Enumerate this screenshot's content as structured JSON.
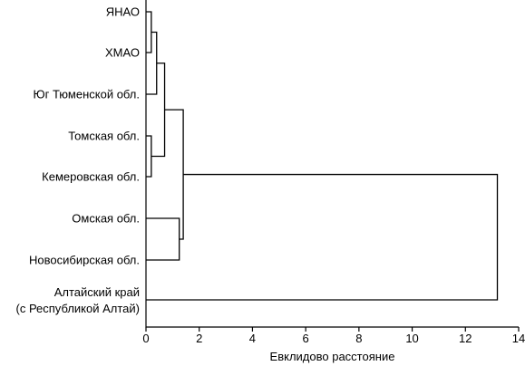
{
  "chart_data": {
    "type": "dendrogram",
    "orientation": "horizontal",
    "xlabel": "Евклидово расстояние",
    "xlim": [
      0,
      14
    ],
    "xticks": [
      0,
      2,
      4,
      6,
      8,
      10,
      12,
      14
    ],
    "leaves": [
      [
        "ЯНАО"
      ],
      [
        "ХМАО"
      ],
      [
        "Юг Тюменской обл."
      ],
      [
        "Томская обл."
      ],
      [
        "Кемеровская обл."
      ],
      [
        "Омская обл."
      ],
      [
        "Новосибирская обл."
      ],
      [
        "Алтайский край",
        "(с Республикой Алтай)"
      ]
    ],
    "merges": [
      {
        "a": "L0",
        "b": "L1",
        "height": 0.2
      },
      {
        "a": "N0",
        "b": "L2",
        "height": 0.4
      },
      {
        "a": "L3",
        "b": "L4",
        "height": 0.2
      },
      {
        "a": "N1",
        "b": "N2",
        "height": 0.7
      },
      {
        "a": "L5",
        "b": "L6",
        "height": 1.25
      },
      {
        "a": "N3",
        "b": "N4",
        "height": 1.4
      },
      {
        "a": "N5",
        "b": "L7",
        "height": 13.2
      }
    ]
  }
}
